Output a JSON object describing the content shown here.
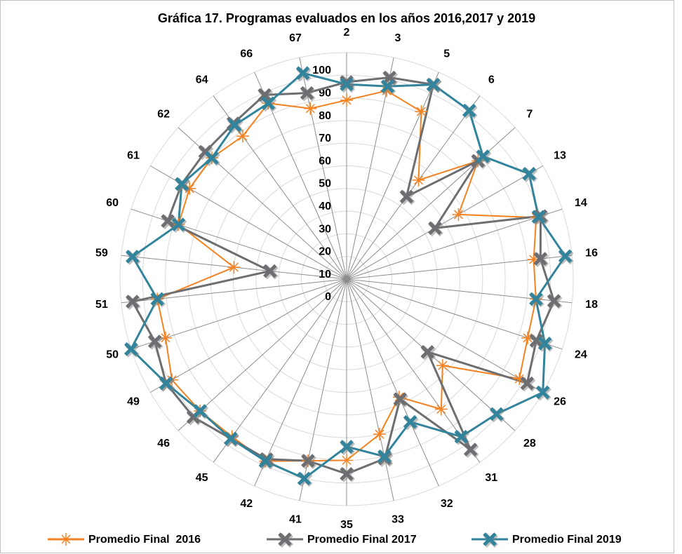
{
  "chart_data": {
    "type": "radar",
    "title": "Gráfica 17. Programas evaluados en los años 2016,2017 y 2019",
    "categories": [
      "2",
      "3",
      "5",
      "6",
      "7",
      "13",
      "14",
      "16",
      "18",
      "24",
      "26",
      "28",
      "31",
      "32",
      "33",
      "35",
      "41",
      "42",
      "45",
      "46",
      "49",
      "50",
      "51",
      "59",
      "60",
      "61",
      "62",
      "64",
      "66",
      "67"
    ],
    "ylim": [
      0,
      100
    ],
    "yticks": [
      0,
      10,
      20,
      30,
      40,
      50,
      60,
      70,
      80,
      90,
      100
    ],
    "grid": true,
    "legend": "bottom",
    "series": [
      {
        "name": "Promedio Final  2016",
        "color": "#f58220",
        "marker": "asterisk",
        "values": [
          79,
          85,
          81,
          54,
          78,
          57,
          88,
          83,
          84,
          84,
          88,
          57,
          71,
          57,
          70,
          80,
          82,
          88,
          86,
          87,
          89,
          84,
          84,
          50,
          78,
          80,
          80,
          78,
          85,
          77
        ]
      },
      {
        "name": "Promedio Final 2017",
        "color": "#6d6e71",
        "marker": "x",
        "values": [
          87,
          91,
          94,
          45,
          78,
          45,
          90,
          86,
          92,
          88,
          92,
          48,
          93,
          58,
          81,
          86,
          82,
          87,
          87,
          91,
          92,
          89,
          95,
          34,
          83,
          84,
          84,
          85,
          89,
          84
        ]
      },
      {
        "name": "Promedio Final 2019",
        "color": "#31849b",
        "marker": "x",
        "values": [
          86,
          87,
          94,
          92,
          81,
          93,
          89,
          97,
          84,
          92,
          100,
          89,
          86,
          69,
          80,
          74,
          90,
          88,
          87,
          87,
          92,
          100,
          84,
          95,
          78,
          84,
          80,
          84,
          85,
          93
        ]
      }
    ]
  }
}
